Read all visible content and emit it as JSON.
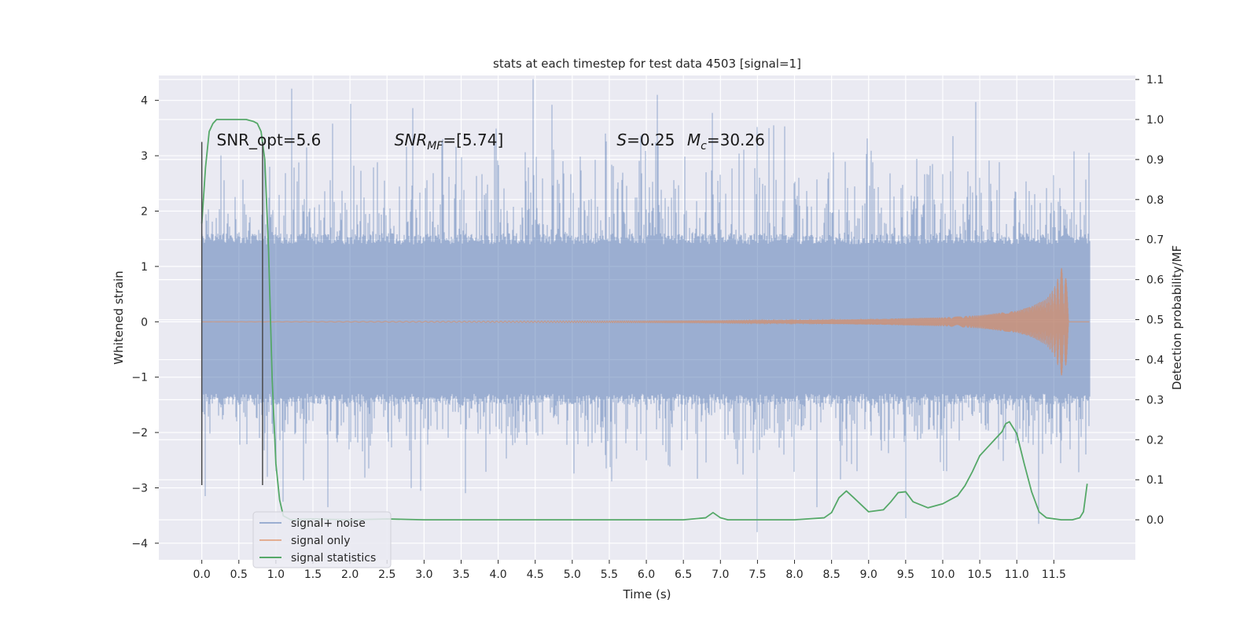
{
  "chart_data": {
    "type": "line",
    "title": "stats at each timestep for test data 4503 [signal=1]",
    "xlabel": "Time (s)",
    "ylabel": "Whitened strain",
    "y2label": "Detection probability/MF",
    "xlim": [
      -0.58,
      12.6
    ],
    "ylim": [
      -4.3,
      4.45
    ],
    "y2lim": [
      -0.1,
      1.11
    ],
    "grid": true,
    "legend_position": "lower-left",
    "x_ticks": [
      0.0,
      0.5,
      1.0,
      1.5,
      2.0,
      2.5,
      3.0,
      3.5,
      4.0,
      4.5,
      5.0,
      5.5,
      6.0,
      6.5,
      7.0,
      7.5,
      8.0,
      8.5,
      9.0,
      9.5,
      10.0,
      10.5,
      11.0,
      11.5
    ],
    "x_tick_labels": [
      "0.0",
      "0.5",
      "1.0",
      "1.5",
      "2.0",
      "2.5",
      "3.0",
      "3.5",
      "4.0",
      "4.5",
      "5.0",
      "5.5",
      "6.0",
      "6.5",
      "7.0",
      "7.5",
      "8.0",
      "8.5",
      "9.0",
      "9.5",
      "10.0",
      "10.5",
      "11.0",
      "11.5"
    ],
    "y_ticks": [
      -4,
      -3,
      -2,
      -1,
      0,
      1,
      2,
      3,
      4
    ],
    "y_tick_labels": [
      "−4",
      "−3",
      "−2",
      "−1",
      "0",
      "1",
      "2",
      "3",
      "4"
    ],
    "y2_ticks": [
      0.0,
      0.1,
      0.2,
      0.3,
      0.4,
      0.5,
      0.6,
      0.7,
      0.8,
      0.9,
      1.0,
      1.1
    ],
    "y2_tick_labels": [
      "0.0",
      "0.1",
      "0.2",
      "0.3",
      "0.4",
      "0.5",
      "0.6",
      "0.7",
      "0.8",
      "0.9",
      "1.0",
      "1.1"
    ],
    "annotations": [
      {
        "id": "snr-opt",
        "text": "SNR_opt=5.6"
      },
      {
        "id": "snr-mf",
        "text": "SNR_MF=[5.74]"
      },
      {
        "id": "s-value",
        "text": "S=0.25"
      },
      {
        "id": "chirp-mass",
        "text": "M_c=30.26"
      }
    ],
    "vertical_markers": [
      {
        "x": 0.0,
        "y_range": [
          -2.95,
          3.25
        ]
      },
      {
        "x": 0.82,
        "y_range": [
          -2.95,
          3.25
        ]
      }
    ],
    "series": [
      {
        "name": "signal+ noise",
        "color": "#4c72b0",
        "alpha": 0.5,
        "axis": "left",
        "x_range": [
          0.0,
          11.98
        ],
        "dense_band": [
          -1.3,
          1.4
        ],
        "typical_envelope": [
          -2.0,
          2.4
        ],
        "extreme_peaks": [
          {
            "x": 0.05,
            "y": -3.15
          },
          {
            "x": 1.1,
            "y": -3.25
          },
          {
            "x": 1.7,
            "y": -3.35
          },
          {
            "x": 3.25,
            "y": 3.3
          },
          {
            "x": 5.45,
            "y": 3.4
          },
          {
            "x": 6.15,
            "y": 4.1
          },
          {
            "x": 7.5,
            "y": -3.8
          },
          {
            "x": 7.65,
            "y": 3.5
          },
          {
            "x": 8.3,
            "y": -3.35
          },
          {
            "x": 9.5,
            "y": -3.55
          },
          {
            "x": 10.45,
            "y": 3.97
          },
          {
            "x": 11.3,
            "y": -3.65
          }
        ]
      },
      {
        "name": "signal only",
        "color": "#dd8452",
        "alpha": 0.6,
        "axis": "left",
        "x": [
          0.0,
          7.0,
          8.0,
          9.0,
          10.0,
          10.5,
          11.0,
          11.2,
          11.4,
          11.5,
          11.6,
          11.65,
          11.7,
          11.98
        ],
        "amplitude": [
          0.0,
          0.02,
          0.03,
          0.05,
          0.08,
          0.12,
          0.2,
          0.28,
          0.42,
          0.6,
          0.95,
          1.3,
          0.0,
          0.0
        ]
      },
      {
        "name": "signal statistics",
        "color": "#55a868",
        "axis": "right",
        "x": [
          0.0,
          0.05,
          0.1,
          0.15,
          0.2,
          0.3,
          0.5,
          0.6,
          0.7,
          0.75,
          0.8,
          0.85,
          0.9,
          0.95,
          1.0,
          1.05,
          1.1,
          1.2,
          1.5,
          2.0,
          2.5,
          3.0,
          4.0,
          5.0,
          6.0,
          6.5,
          6.8,
          6.9,
          7.0,
          7.1,
          7.5,
          8.0,
          8.4,
          8.5,
          8.6,
          8.7,
          8.8,
          9.0,
          9.2,
          9.3,
          9.4,
          9.5,
          9.6,
          9.8,
          10.0,
          10.2,
          10.3,
          10.4,
          10.5,
          10.6,
          10.7,
          10.8,
          10.85,
          10.9,
          11.0,
          11.1,
          11.2,
          11.3,
          11.4,
          11.6,
          11.75,
          11.85,
          11.9,
          11.95
        ],
        "y": [
          0.74,
          0.88,
          0.97,
          0.99,
          1.0,
          1.0,
          1.0,
          1.0,
          0.995,
          0.99,
          0.97,
          0.9,
          0.68,
          0.35,
          0.14,
          0.05,
          0.01,
          0.0,
          0.002,
          0.0,
          0.002,
          0.0,
          0.0,
          0.0,
          0.0,
          0.0,
          0.005,
          0.018,
          0.005,
          0.0,
          0.0,
          0.0,
          0.005,
          0.018,
          0.055,
          0.072,
          0.055,
          0.02,
          0.025,
          0.045,
          0.068,
          0.07,
          0.045,
          0.03,
          0.04,
          0.06,
          0.085,
          0.12,
          0.16,
          0.18,
          0.2,
          0.22,
          0.24,
          0.245,
          0.215,
          0.14,
          0.07,
          0.02,
          0.005,
          0.0,
          0.0,
          0.005,
          0.02,
          0.09
        ]
      }
    ]
  }
}
